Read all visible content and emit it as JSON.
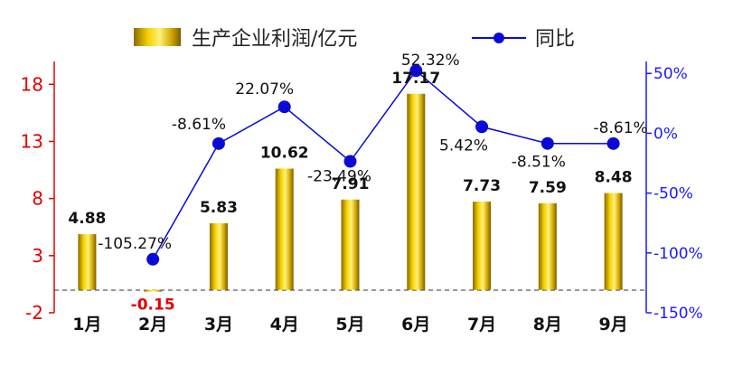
{
  "chart_data": {
    "type": "bar+line",
    "categories": [
      "1月",
      "2月",
      "3月",
      "4月",
      "5月",
      "6月",
      "7月",
      "8月",
      "9月"
    ],
    "series": [
      {
        "name": "生产企业利润/亿元",
        "type": "bar",
        "axis": "left",
        "values": [
          4.88,
          -0.15,
          5.83,
          10.62,
          7.91,
          17.17,
          7.73,
          7.59,
          8.48
        ],
        "labels": [
          "4.88",
          "-0.15",
          "5.83",
          "10.62",
          "7.91",
          "17.17",
          "7.73",
          "7.59",
          "8.48"
        ]
      },
      {
        "name": "同比",
        "type": "line",
        "axis": "right",
        "values": [
          null,
          -105.27,
          -8.61,
          22.07,
          -23.49,
          52.32,
          5.42,
          -8.51,
          -8.61
        ],
        "labels": [
          "",
          "-105.27%",
          "-8.61%",
          "22.07%",
          "-23.49%",
          "52.32%",
          "5.42%",
          "-8.51%",
          "-8.61%"
        ]
      }
    ],
    "y_left": {
      "range": [
        -2,
        20
      ],
      "ticks": [
        -2,
        3,
        8,
        13,
        18
      ],
      "tick_labels": [
        "-2",
        "3",
        "8",
        "13",
        "18"
      ]
    },
    "y_right": {
      "range": [
        -150,
        60
      ],
      "ticks": [
        -150,
        -100,
        -50,
        0,
        50
      ],
      "tick_labels": [
        "-150%",
        "-100%",
        "-50%",
        "0%",
        "50%"
      ]
    },
    "legend": {
      "position": "top"
    },
    "grid": false,
    "colors": {
      "bar": "#d4a800",
      "line": "#0a0ad8",
      "left_axis": "#e60000",
      "right_axis": "#1a1aff"
    }
  }
}
